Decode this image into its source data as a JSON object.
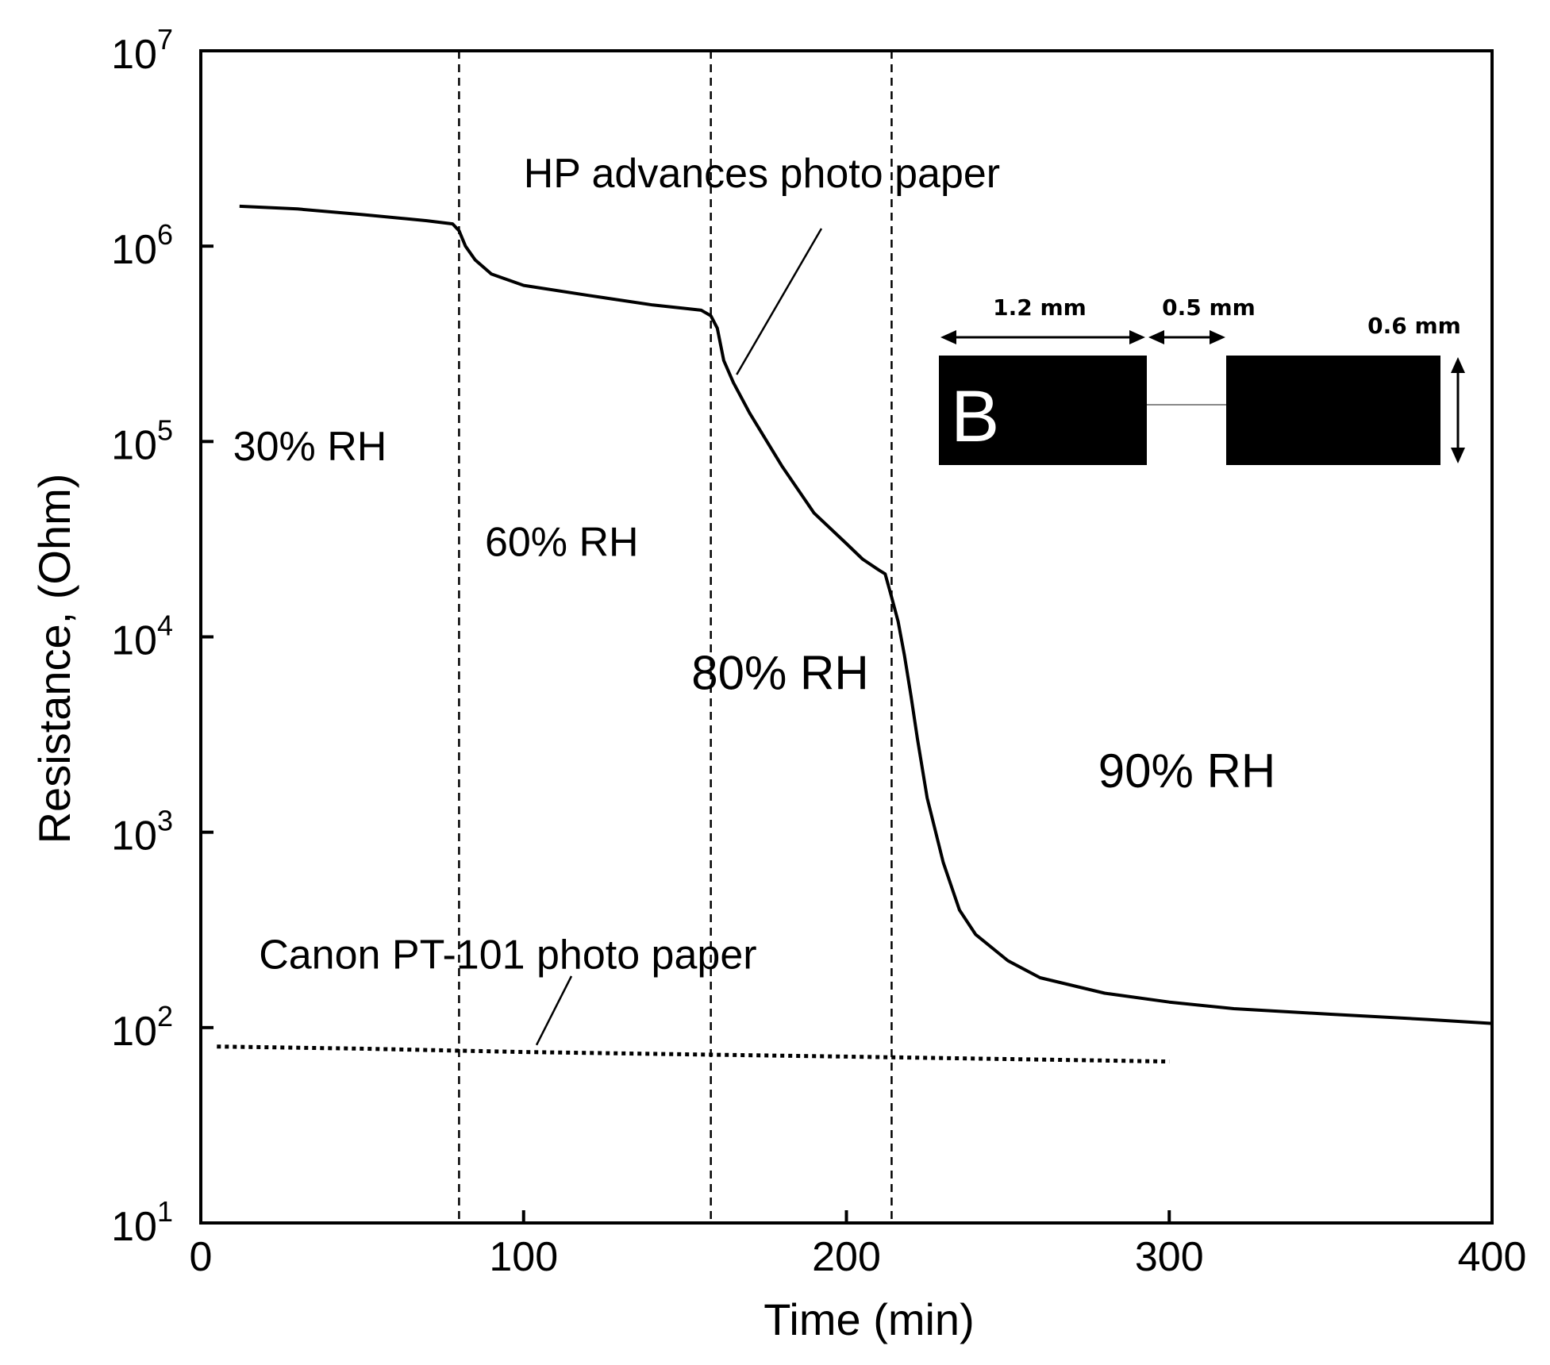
{
  "chart_data": {
    "type": "line",
    "title": "",
    "xlabel": "Time (min)",
    "ylabel": "Resistance, (Ohm)",
    "xlim": [
      0,
      400
    ],
    "ylim": [
      10,
      10000000
    ],
    "yscale": "log",
    "xticks": [
      {
        "value": 0,
        "label": "0"
      },
      {
        "value": 100,
        "label": "100"
      },
      {
        "value": 200,
        "label": "200"
      },
      {
        "value": 300,
        "label": "300"
      },
      {
        "value": 400,
        "label": "400"
      }
    ],
    "yticks": [
      {
        "value": 10,
        "base": "10",
        "exp": "1"
      },
      {
        "value": 100,
        "base": "10",
        "exp": "2"
      },
      {
        "value": 1000,
        "base": "10",
        "exp": "3"
      },
      {
        "value": 10000,
        "base": "10",
        "exp": "4"
      },
      {
        "value": 100000,
        "base": "10",
        "exp": "5"
      },
      {
        "value": 1000000,
        "base": "10",
        "exp": "6"
      },
      {
        "value": 10000000,
        "base": "10",
        "exp": "7"
      }
    ],
    "grid": false,
    "phase_boundaries": [
      80,
      158,
      214
    ],
    "phases": [
      {
        "label": "30% RH",
        "x": 10,
        "y": 80000
      },
      {
        "label": "60% RH",
        "x": 88,
        "y": 26000
      },
      {
        "label": "80% RH",
        "x": 152,
        "y": 5400
      },
      {
        "label": "90% RH",
        "x": 278,
        "y": 1700
      }
    ],
    "series": [
      {
        "name": "HP advances photo paper",
        "style": "solid",
        "x": [
          12,
          30,
          50,
          70,
          78,
          80,
          82,
          85,
          90,
          100,
          120,
          140,
          150,
          155,
          158,
          160,
          162,
          165,
          170,
          180,
          190,
          200,
          205,
          210,
          212,
          214,
          216,
          218,
          220,
          222,
          225,
          230,
          235,
          240,
          250,
          260,
          280,
          300,
          320,
          350,
          380,
          400
        ],
        "y": [
          1600000,
          1550000,
          1450000,
          1350000,
          1300000,
          1200000,
          1000000,
          850000,
          720000,
          630000,
          560000,
          500000,
          480000,
          470000,
          440000,
          380000,
          260000,
          200000,
          140000,
          75000,
          43000,
          30000,
          25000,
          22000,
          21000,
          16000,
          12000,
          8000,
          5000,
          3000,
          1500,
          700,
          400,
          300,
          220,
          180,
          150,
          135,
          125,
          117,
          110,
          105
        ]
      },
      {
        "name": "Canon PT-101 photo paper",
        "style": "dotted",
        "x": [
          5,
          50,
          100,
          150,
          200,
          250,
          300
        ],
        "y": [
          80,
          78,
          75,
          73,
          71,
          69,
          67
        ]
      }
    ],
    "annotations": [
      {
        "text": "HP advances photo paper",
        "x": 100,
        "y": 2000000,
        "target_x": 166,
        "target_y": 220000
      },
      {
        "text": "Canon PT-101 photo paper",
        "x": 18,
        "y": 200,
        "target_x": 104,
        "target_y": 77
      }
    ],
    "inset": {
      "letter": "B",
      "dims": [
        "1.2 mm",
        "0.5 mm",
        "0.6 mm"
      ]
    }
  }
}
